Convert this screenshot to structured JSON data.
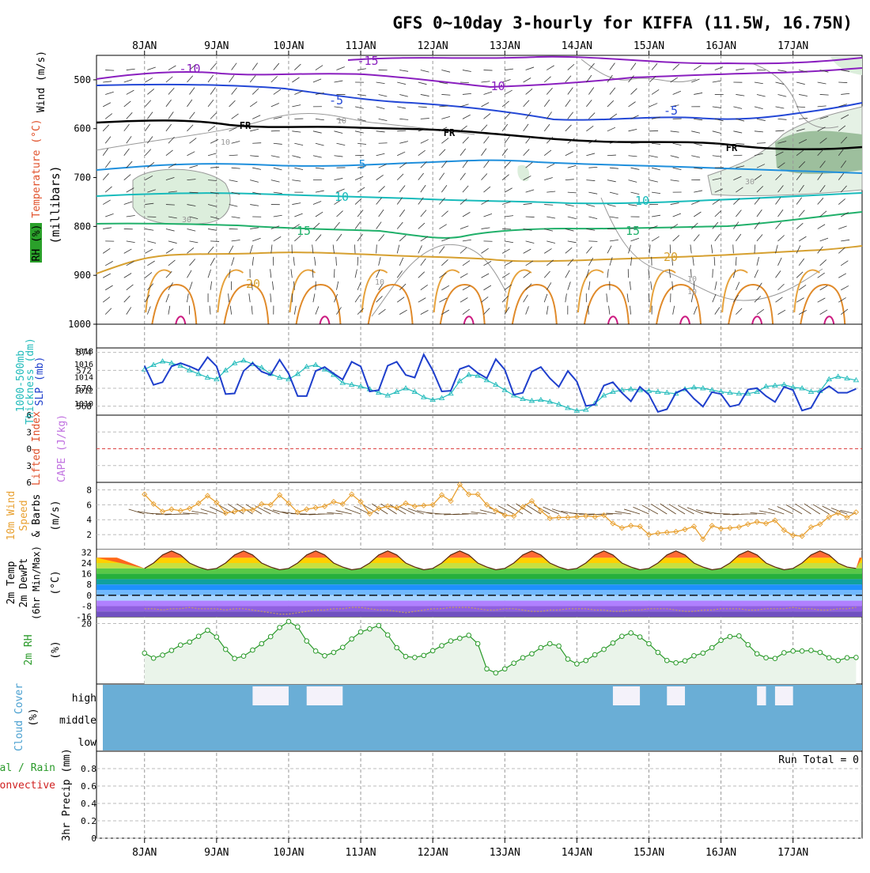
{
  "title": "GFS 0~10day 3-hourly for KIFFA (11.5W, 16.75N)",
  "days": [
    "8JAN",
    "9JAN",
    "10JAN",
    "11JAN",
    "12JAN",
    "13JAN",
    "14JAN",
    "15JAN",
    "16JAN",
    "17JAN"
  ],
  "labels": {
    "wind": "Wind (m/s)",
    "temperature": "Temperature (°C)",
    "millibars": "(millibars)",
    "rh": "RH (%)",
    "thickness_a": "1000-500mb",
    "thickness_b": "Thickness (dm)",
    "slp": "SLP (mb)",
    "lifted_index": "Lifted Index",
    "cape": "CAPE (J/kg)",
    "wind10_a": "10m Wind",
    "wind10_b": "Speed",
    "wind10_c": "& Barbs",
    "wind10_unit": "(m/s)",
    "t2_a": "2m Temp",
    "t2_b": "2m DewPt",
    "t2_c": "(6hr Min/Max)",
    "t2_unit": "(°C)",
    "rh2": "2m RH",
    "rh2_unit": "(%)",
    "cloud": "Cloud Cover",
    "cloud_unit": "(%)",
    "precip_a": "Total / Rain",
    "precip_b": "Convective",
    "precip_c": "3hr Precip (mm)",
    "run_total": "Run Total = 0",
    "fr": "FR"
  },
  "colors": {
    "thickness": "#22bbbb",
    "slp": "#1f3fcc",
    "wind10": "#e8a030",
    "rh2": "#2a9a2a",
    "cloud": "#6aaed6",
    "temp_band": "#e0502a"
  },
  "chart_data": [
    {
      "type": "line",
      "panel": "upper-air cross section",
      "ylabel": "millibars",
      "yticks": [
        "500",
        "600",
        "700",
        "800",
        "900",
        "1000"
      ],
      "ylim": [
        1000,
        450
      ],
      "isotherm_labels": [
        "-15",
        "-10",
        "-10",
        "-5",
        "-5",
        "5",
        "5",
        "10",
        "10",
        "15",
        "15",
        "20",
        "20"
      ],
      "rh_contour_labels": [
        "10",
        "10",
        "30",
        "30",
        "10",
        "10",
        "10"
      ]
    },
    {
      "type": "line",
      "panel": "thickness and slp",
      "x_hours": [
        0,
        3,
        6,
        9,
        12,
        15,
        18,
        21,
        24,
        27,
        30,
        33,
        36,
        39,
        42,
        45,
        48,
        51,
        54,
        57,
        60,
        63,
        66,
        69,
        72,
        75,
        78,
        81,
        84,
        87,
        90,
        93,
        96,
        99,
        102,
        105,
        108,
        111,
        114,
        117,
        120,
        123,
        126,
        129,
        132,
        135,
        138,
        141,
        144,
        147,
        150,
        153,
        156,
        159,
        162,
        165,
        168,
        171,
        174,
        177,
        180,
        183,
        186,
        189,
        192,
        195,
        198,
        201,
        204,
        207,
        210,
        213,
        216,
        219,
        222,
        225,
        228,
        231,
        234,
        237
      ],
      "series": [
        {
          "name": "1000-500mb Thickness (dm)",
          "axis": "left",
          "values": [
            572.1,
            572.6,
            573.0,
            572.8,
            572.5,
            572.0,
            571.6,
            571.2,
            571.0,
            572.0,
            572.8,
            573.1,
            572.7,
            572.3,
            571.6,
            571.2,
            571.0,
            571.6,
            572.4,
            572.6,
            572.1,
            571.5,
            570.6,
            570.4,
            570.2,
            569.9,
            569.5,
            569.2,
            569.6,
            570.0,
            569.6,
            569.0,
            568.7,
            568.9,
            569.4,
            570.8,
            571.5,
            571.4,
            570.9,
            570.4,
            569.8,
            569.2,
            568.8,
            568.6,
            568.7,
            568.5,
            568.2,
            567.8,
            567.5,
            567.6,
            568.3,
            569.2,
            569.6,
            569.8,
            569.9,
            569.8,
            569.7,
            569.6,
            569.5,
            569.4,
            569.9,
            570.1,
            570.0,
            569.8,
            569.6,
            569.5,
            569.4,
            569.4,
            569.6,
            570.2,
            570.3,
            570.4,
            570.1,
            570.0,
            569.6,
            569.7,
            571.0,
            571.3,
            571.1,
            570.9
          ]
        },
        {
          "name": "SLP (mb)",
          "axis": "right",
          "values": [
            1015.7,
            1012.8,
            1013.2,
            1015.6,
            1016.1,
            1015.6,
            1015.0,
            1017.0,
            1015.6,
            1011.4,
            1011.5,
            1014.9,
            1016.1,
            1014.8,
            1014.3,
            1016.6,
            1014.5,
            1011.1,
            1011.1,
            1014.9,
            1015.5,
            1014.5,
            1013.6,
            1016.3,
            1015.6,
            1011.8,
            1012.0,
            1015.7,
            1016.3,
            1014.3,
            1013.9,
            1017.4,
            1015.0,
            1011.8,
            1011.9,
            1015.2,
            1015.7,
            1014.6,
            1013.8,
            1016.7,
            1015.1,
            1011.3,
            1011.6,
            1014.8,
            1015.5,
            1013.8,
            1012.5,
            1014.9,
            1013.3,
            1009.6,
            1009.8,
            1012.7,
            1013.2,
            1011.6,
            1010.3,
            1012.5,
            1011.3,
            1008.7,
            1009.1,
            1011.6,
            1012.2,
            1010.7,
            1009.5,
            1011.7,
            1011.4,
            1009.5,
            1009.8,
            1012.1,
            1012.3,
            1011.1,
            1010.2,
            1012.5,
            1012.0,
            1008.9,
            1009.3,
            1011.7,
            1012.6,
            1011.6,
            1011.6,
            1012.2
          ]
        }
      ],
      "yticks_left": [
        "568",
        "570",
        "572",
        "574"
      ],
      "yticks_right": [
        "1010",
        "1012",
        "1014",
        "1016",
        "1018"
      ],
      "ylim_left": [
        567,
        574.5
      ],
      "ylim_right": [
        1008.2,
        1018.4
      ]
    },
    {
      "type": "line",
      "panel": "lifted index / cape",
      "yticks": [
        "6",
        "3",
        "0",
        "3",
        "6"
      ],
      "ylim": [
        -6,
        6
      ],
      "values_constant": 0
    },
    {
      "type": "line",
      "panel": "10m wind",
      "ylabel": "(m/s)",
      "yticks": [
        "2",
        "4",
        "6",
        "8"
      ],
      "ylim": [
        0,
        9
      ],
      "x_hours": [
        0,
        3,
        6,
        9,
        12,
        15,
        18,
        21,
        24,
        27,
        30,
        33,
        36,
        39,
        42,
        45,
        48,
        51,
        54,
        57,
        60,
        63,
        66,
        69,
        72,
        75,
        78,
        81,
        84,
        87,
        90,
        93,
        96,
        99,
        102,
        105,
        108,
        111,
        114,
        117,
        120,
        123,
        126,
        129,
        132,
        135,
        138,
        141,
        144,
        147,
        150,
        153,
        156,
        159,
        162,
        165,
        168,
        171,
        174,
        177,
        180,
        183,
        186,
        189,
        192,
        195,
        198,
        201,
        204,
        207,
        210,
        213,
        216,
        219,
        222,
        225,
        228,
        231,
        234,
        237
      ],
      "values": [
        7.4,
        6.1,
        5.1,
        5.4,
        5.2,
        5.5,
        6.2,
        7.2,
        6.3,
        4.9,
        5.1,
        5.3,
        5.3,
        6.1,
        6.0,
        7.3,
        6.2,
        5.0,
        5.4,
        5.6,
        5.8,
        6.4,
        6.1,
        7.4,
        6.4,
        4.8,
        5.5,
        5.8,
        5.6,
        6.2,
        5.8,
        5.9,
        6.0,
        7.3,
        6.5,
        8.7,
        7.4,
        7.4,
        6.0,
        5.2,
        4.6,
        4.5,
        5.7,
        6.5,
        5.2,
        4.2,
        4.3,
        4.3,
        4.4,
        4.5,
        4.4,
        4.6,
        3.5,
        2.9,
        3.2,
        3.1,
        2.0,
        2.2,
        2.3,
        2.4,
        2.7,
        3.1,
        1.4,
        3.2,
        2.8,
        2.9,
        3.0,
        3.4,
        3.7,
        3.5,
        3.9,
        2.6,
        1.9,
        1.8,
        3.0,
        3.4,
        4.4,
        4.9,
        4.3,
        5.0
      ]
    },
    {
      "type": "area",
      "panel": "2m temperature",
      "ylabel": "(°C)",
      "yticks": [
        "32",
        "24",
        "16",
        "8",
        "0",
        "-8",
        "-16"
      ],
      "ylim": [
        -16,
        34
      ],
      "x_hours": [
        0,
        3,
        6,
        9,
        12,
        15,
        18,
        21,
        24,
        27,
        30,
        33,
        36,
        39,
        42,
        45,
        48,
        51,
        54,
        57,
        60,
        63,
        66,
        69,
        72,
        75,
        78,
        81,
        84,
        87,
        90,
        93,
        96,
        99,
        102,
        105,
        108,
        111,
        114,
        117,
        120,
        123,
        126,
        129,
        132,
        135,
        138,
        141,
        144,
        147,
        150,
        153,
        156,
        159,
        162,
        165,
        168,
        171,
        174,
        177,
        180,
        183,
        186,
        189,
        192,
        195,
        198,
        201,
        204,
        207,
        210,
        213,
        216,
        219,
        222,
        225,
        228,
        231,
        234,
        237
      ],
      "series": [
        {
          "name": "2m Temp",
          "values": [
            20,
            24,
            30,
            33,
            30,
            24,
            21,
            19,
            20,
            24,
            30,
            33,
            30,
            24,
            21,
            19,
            20,
            24,
            30,
            33,
            30,
            24,
            21,
            19,
            20,
            24,
            30,
            33,
            30,
            24,
            21,
            19,
            20,
            24,
            30,
            33,
            30,
            24,
            21,
            19,
            20,
            24,
            30,
            33,
            30,
            24,
            21,
            19,
            20,
            24,
            30,
            33,
            30,
            24,
            21,
            19,
            20,
            24,
            30,
            33,
            30,
            24,
            21,
            19,
            20,
            24,
            30,
            33,
            30,
            24,
            21,
            19,
            20,
            24,
            30,
            33,
            30,
            24,
            21,
            20
          ]
        },
        {
          "name": "2m DewPt",
          "values": [
            -10,
            -10,
            -11,
            -10,
            -10,
            -9,
            -10,
            -10,
            -10,
            -11,
            -10,
            -10,
            -11,
            -12,
            -13,
            -14,
            -14,
            -13,
            -12,
            -11,
            -11,
            -10,
            -10,
            -9,
            -9,
            -10,
            -11,
            -11,
            -12,
            -13,
            -12,
            -11,
            -10,
            -10,
            -9,
            -9,
            -9,
            -10,
            -11,
            -11,
            -10,
            -10,
            -11,
            -12,
            -12,
            -11,
            -11,
            -10,
            -10,
            -10,
            -11,
            -11,
            -12,
            -12,
            -11,
            -11,
            -10,
            -10,
            -10,
            -11,
            -12,
            -12,
            -11,
            -11,
            -10,
            -10,
            -10,
            -11,
            -11,
            -10,
            -10,
            -10,
            -9,
            -10,
            -10,
            -11,
            -11,
            -10,
            -10,
            -9
          ]
        }
      ]
    },
    {
      "type": "area",
      "panel": "2m relative humidity",
      "ylabel": "(%)",
      "yticks": [
        "20"
      ],
      "ylim": [
        2,
        22
      ],
      "x_hours": [
        0,
        3,
        6,
        9,
        12,
        15,
        18,
        21,
        24,
        27,
        30,
        33,
        36,
        39,
        42,
        45,
        48,
        51,
        54,
        57,
        60,
        63,
        66,
        69,
        72,
        75,
        78,
        81,
        84,
        87,
        90,
        93,
        96,
        99,
        102,
        105,
        108,
        111,
        114,
        117,
        120,
        123,
        126,
        129,
        132,
        135,
        138,
        141,
        144,
        147,
        150,
        153,
        156,
        159,
        162,
        165,
        168,
        171,
        174,
        177,
        180,
        183,
        186,
        189,
        192,
        195,
        198,
        201,
        204,
        207,
        210,
        213,
        216,
        219,
        222,
        225,
        228,
        231,
        234,
        237
      ],
      "values": [
        11.2,
        9.7,
        10.6,
        12.0,
        13.6,
        14.5,
        16.2,
        18.0,
        16.0,
        12.3,
        9.6,
        10.3,
        12.1,
        14.0,
        16.1,
        18.8,
        20.6,
        19.0,
        14.8,
        11.8,
        10.4,
        11.4,
        12.9,
        15.4,
        17.5,
        18.4,
        19.4,
        16.6,
        12.8,
        10.2,
        9.9,
        10.5,
        11.9,
        13.4,
        14.8,
        15.6,
        16.5,
        14.0,
        6.5,
        5.3,
        6.5,
        8.2,
        9.8,
        11.0,
        12.8,
        14.0,
        13.3,
        9.4,
        8.0,
        9.0,
        10.7,
        12.3,
        14.2,
        16.2,
        17.2,
        16.0,
        14.0,
        11.4,
        9.0,
        8.3,
        8.9,
        10.4,
        11.2,
        12.8,
        15.0,
        16.1,
        16.3,
        13.7,
        11.0,
        9.8,
        9.6,
        11.3,
        11.8,
        11.8,
        12.0,
        11.4,
        9.8,
        9.0,
        9.8,
        9.9
      ]
    },
    {
      "type": "heatmap",
      "panel": "cloud cover",
      "ylabel": "(%)",
      "rows": [
        "high",
        "middle",
        "low"
      ],
      "clear_high_windows": [
        [
          36,
          48
        ],
        [
          54,
          66
        ],
        [
          156,
          165
        ],
        [
          174,
          180
        ],
        [
          204,
          207
        ],
        [
          210,
          216
        ]
      ]
    },
    {
      "type": "bar",
      "panel": "3hr precip",
      "ylabel": "3hr Precip (mm)",
      "yticks": [
        "0",
        "0.2",
        "0.4",
        "0.6",
        "0.8"
      ],
      "ylim": [
        0,
        1.0
      ],
      "values": [],
      "run_total": 0
    }
  ]
}
